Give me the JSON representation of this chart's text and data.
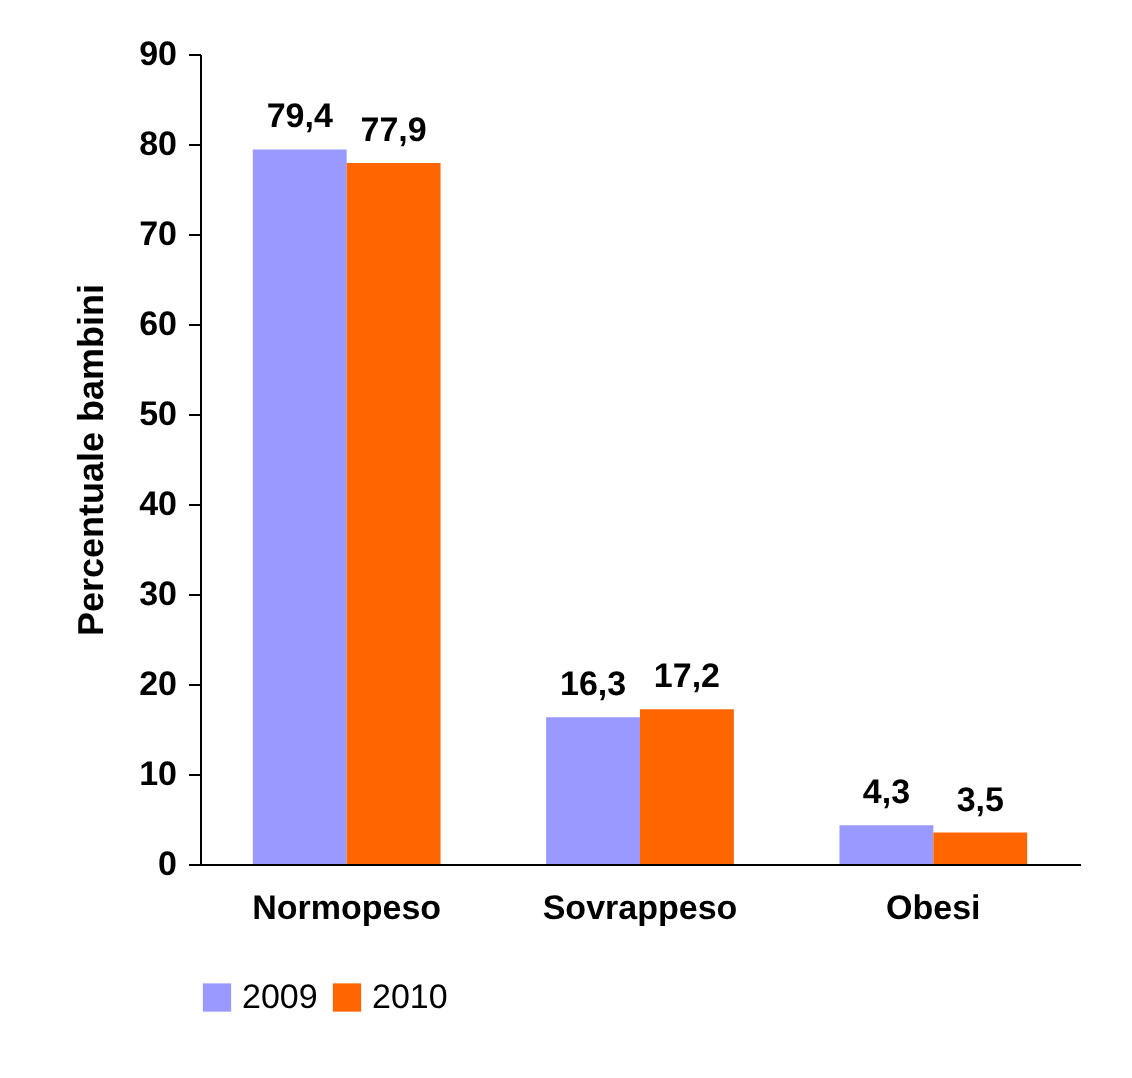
{
  "chart_data": {
    "type": "bar",
    "ylabel": "Percentuale bambini",
    "categories": [
      "Normopeso",
      "Sovrappeso",
      "Obesi"
    ],
    "series": [
      {
        "name": "2009",
        "color": "#9999ff",
        "values": [
          79.4,
          16.3,
          4.3
        ],
        "value_labels": [
          "79,4",
          "16,3",
          "4,3"
        ]
      },
      {
        "name": "2010",
        "color": "#ff6600",
        "values": [
          77.9,
          17.2,
          3.5
        ],
        "value_labels": [
          "77,9",
          "17,2",
          "3,5"
        ]
      }
    ],
    "ylim": [
      0,
      90
    ],
    "yticks": [
      0,
      10,
      20,
      30,
      40,
      50,
      60,
      70,
      80,
      90
    ],
    "grid": false,
    "legend": "bottom"
  }
}
